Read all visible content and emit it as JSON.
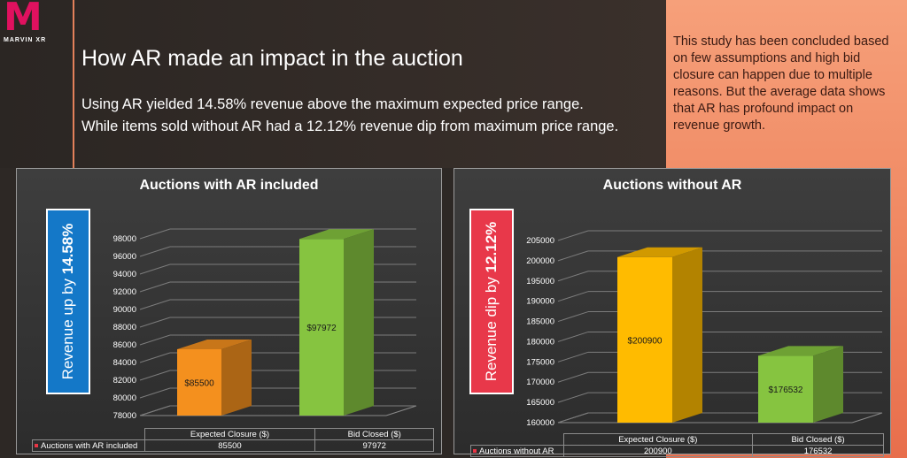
{
  "logo": {
    "text": "M",
    "sub": "MARVIN XR"
  },
  "header": {
    "title": "How AR made an impact in the auction",
    "line1": "Using AR yielded 14.58% revenue above the maximum expected price range.",
    "line2": "While items sold without AR had a 12.12% revenue dip from maximum price range."
  },
  "note": "This study has been concluded based on few assumptions and high bid closure can happen due to multiple reasons. But the average data shows that AR has profound impact on revenue growth.",
  "callouts": [
    {
      "prefix": "Revenue up by ",
      "value": "14.58%",
      "color": "#1478c8"
    },
    {
      "prefix": "Revenue dip by ",
      "value": "12.12%",
      "color": "#e8384a"
    }
  ],
  "chart_data": [
    {
      "type": "bar",
      "title": "Auctions with AR included",
      "categories": [
        "Expected Closure ($)",
        "Bid Closed ($)"
      ],
      "series": [
        {
          "name": "Auctions with AR included",
          "values": [
            85500,
            97972
          ]
        }
      ],
      "value_labels": [
        "$85500",
        "$97972"
      ],
      "table_values": [
        "85500",
        "97972"
      ],
      "ylim": [
        78000,
        98000
      ],
      "yticks": [
        78000,
        80000,
        82000,
        84000,
        86000,
        88000,
        90000,
        92000,
        94000,
        96000,
        98000
      ],
      "colors": [
        "#f4901e",
        "#86c440"
      ],
      "grid": true
    },
    {
      "type": "bar",
      "title": "Auctions without AR",
      "categories": [
        "Expected Closure ($)",
        "Bid Closed ($)"
      ],
      "series": [
        {
          "name": "Auctions without AR",
          "values": [
            200900,
            176532
          ]
        }
      ],
      "value_labels": [
        "$200900",
        "$176532"
      ],
      "table_values": [
        "200900",
        "176532"
      ],
      "ylim": [
        160000,
        205000
      ],
      "yticks": [
        160000,
        165000,
        170000,
        175000,
        180000,
        185000,
        190000,
        195000,
        200000,
        205000
      ],
      "colors": [
        "#ffbb00",
        "#86c440"
      ],
      "grid": true
    }
  ]
}
